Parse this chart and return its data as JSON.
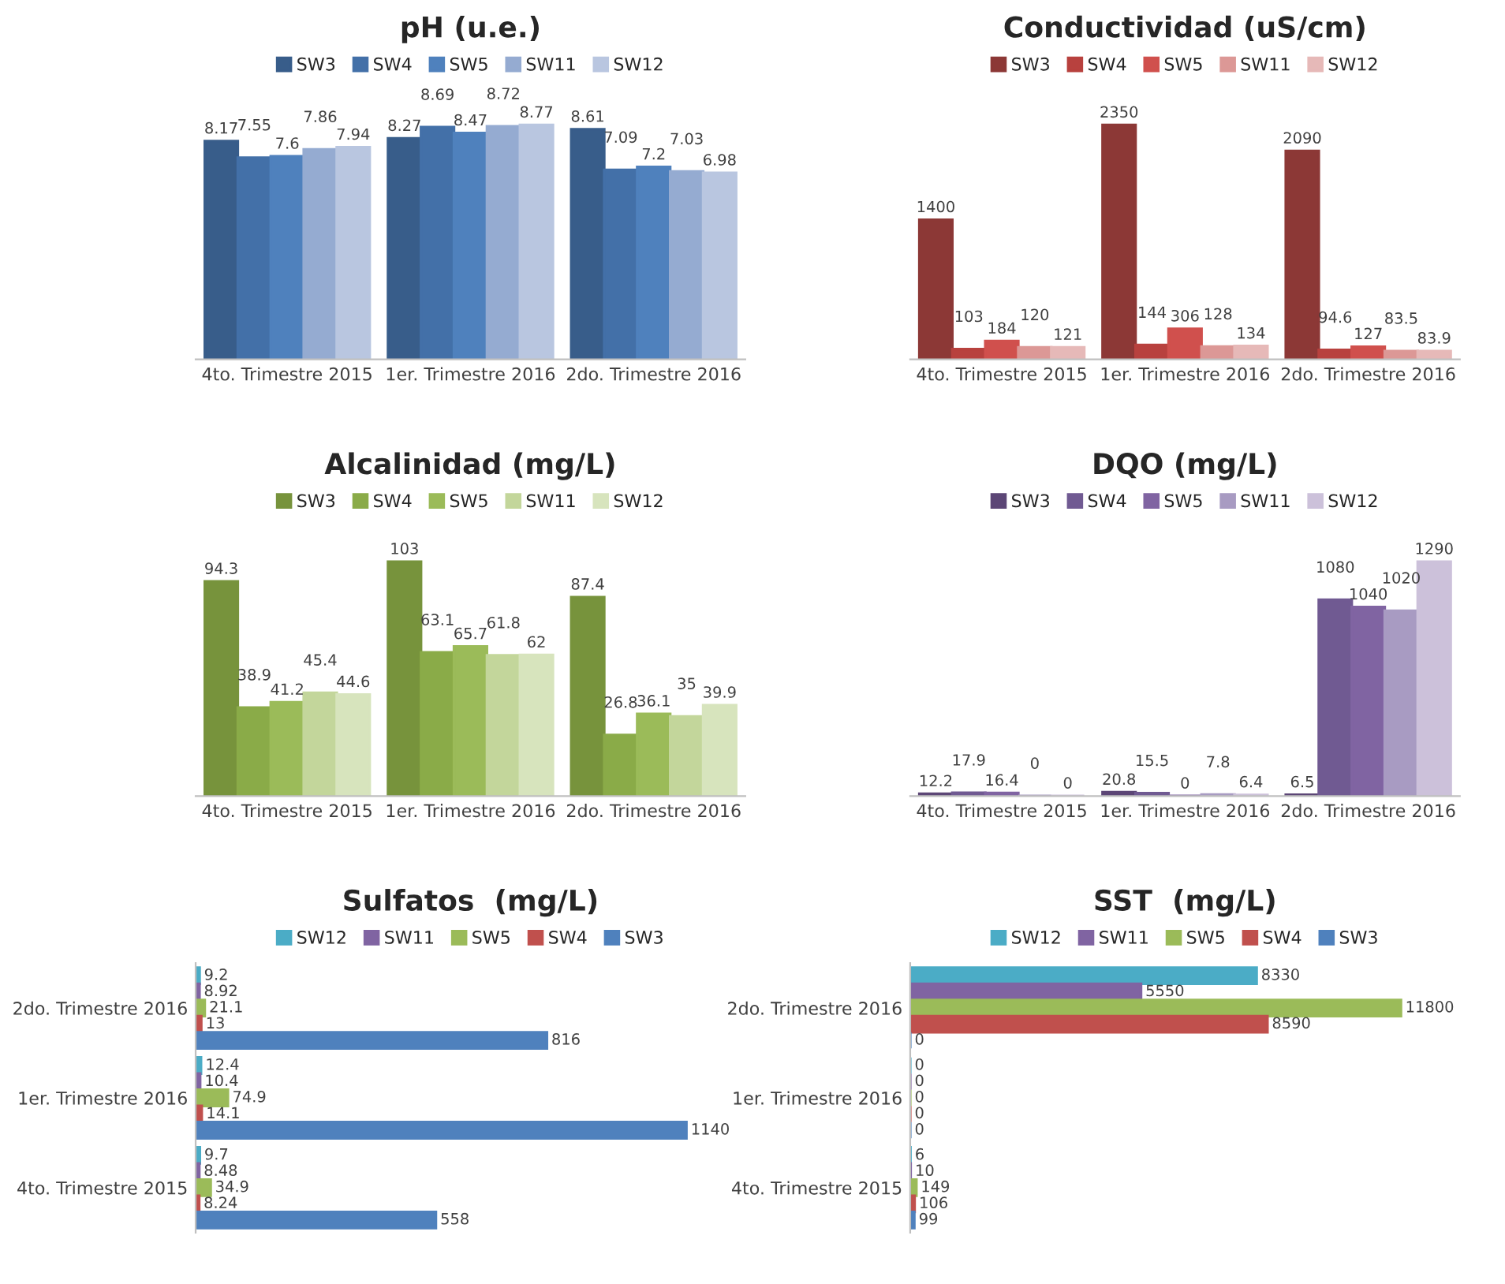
{
  "chart_data": [
    {
      "type": "bar",
      "title": "pH (u.e.)",
      "categories": [
        "4to. Trimestre 2015",
        "1er. Trimestre 2016",
        "2do. Trimestre 2016"
      ],
      "data_labels": true,
      "legend": "top",
      "tick_labels": "x",
      "series": [
        {
          "name": "SW3",
          "color": "#385d8a",
          "values": [
            8.17,
            8.27,
            8.61
          ]
        },
        {
          "name": "SW4",
          "color": "#4370a8",
          "values": [
            7.55,
            8.69,
            7.09
          ]
        },
        {
          "name": "SW5",
          "color": "#4f81bd",
          "values": [
            7.6,
            8.47,
            7.2
          ]
        },
        {
          "name": "SW11",
          "color": "#95abd1",
          "values": [
            7.86,
            8.72,
            7.03
          ]
        },
        {
          "name": "SW12",
          "color": "#b9c6e0",
          "values": [
            7.94,
            8.77,
            6.98
          ]
        }
      ]
    },
    {
      "type": "bar",
      "title": "Conductividad (uS/cm)",
      "categories": [
        "4to. Trimestre 2015",
        "1er. Trimestre 2016",
        "2do. Trimestre 2016"
      ],
      "data_labels": true,
      "legend": "top",
      "tick_labels": "x",
      "series": [
        {
          "name": "SW3",
          "color": "#8c3836",
          "values": [
            1400,
            2350,
            2090
          ]
        },
        {
          "name": "SW4",
          "color": "#b8413e",
          "values": [
            103,
            144,
            94.6
          ]
        },
        {
          "name": "SW5",
          "color": "#d0504d",
          "values": [
            184,
            306,
            127
          ]
        },
        {
          "name": "SW11",
          "color": "#dc9896",
          "values": [
            120,
            128,
            83.5
          ]
        },
        {
          "name": "SW12",
          "color": "#e6b9b8",
          "values": [
            121,
            134,
            83.9
          ]
        }
      ]
    },
    {
      "type": "bar",
      "title": "Alcalinidad (mg/L)",
      "categories": [
        "4to. Trimestre 2015",
        "1er. Trimestre 2016",
        "2do. Trimestre 2016"
      ],
      "data_labels": true,
      "legend": "top",
      "tick_labels": "x",
      "series": [
        {
          "name": "SW3",
          "color": "#77933c",
          "values": [
            94.3,
            103,
            87.4
          ]
        },
        {
          "name": "SW4",
          "color": "#8aab48",
          "values": [
            38.9,
            63.1,
            26.8
          ]
        },
        {
          "name": "SW5",
          "color": "#9bbb59",
          "values": [
            41.2,
            65.7,
            36.1
          ]
        },
        {
          "name": "SW11",
          "color": "#c3d69b",
          "values": [
            45.4,
            61.8,
            35
          ]
        },
        {
          "name": "SW12",
          "color": "#d7e4bd",
          "values": [
            44.6,
            62,
            39.9
          ]
        }
      ]
    },
    {
      "type": "bar",
      "title": "DQO (mg/L)",
      "categories": [
        "4to. Trimestre 2015",
        "1er. Trimestre 2016",
        "2do. Trimestre 2016"
      ],
      "data_labels": true,
      "legend": "top",
      "tick_labels": "x",
      "series": [
        {
          "name": "SW3",
          "color": "#5c4676",
          "values": [
            12.2,
            20.8,
            6.5
          ]
        },
        {
          "name": "SW4",
          "color": "#705a92",
          "values": [
            17.9,
            15.5,
            1080
          ]
        },
        {
          "name": "SW5",
          "color": "#8064a2",
          "values": [
            16.4,
            0,
            1040
          ]
        },
        {
          "name": "SW11",
          "color": "#a89bc2",
          "values": [
            0,
            7.8,
            1020
          ]
        },
        {
          "name": "SW12",
          "color": "#ccc1da",
          "values": [
            0,
            6.4,
            1290
          ]
        }
      ]
    },
    {
      "type": "bar",
      "orientation": "horizontal",
      "title": "Sulfatos  (mg/L)",
      "categories": [
        "2do. Trimestre 2016",
        "1er. Trimestre 2016",
        "4to. Trimestre 2015"
      ],
      "data_labels": true,
      "legend": "top",
      "tick_labels": "y",
      "series": [
        {
          "name": "SW12",
          "color": "#4bacc6",
          "values": [
            9.2,
            12.4,
            9.7
          ]
        },
        {
          "name": "SW11",
          "color": "#8064a2",
          "values": [
            8.92,
            10.4,
            8.48
          ]
        },
        {
          "name": "SW5",
          "color": "#9bbb59",
          "values": [
            21.1,
            74.9,
            34.9
          ]
        },
        {
          "name": "SW4",
          "color": "#c0504d",
          "values": [
            13,
            14.1,
            8.24
          ]
        },
        {
          "name": "SW3",
          "color": "#4f81bd",
          "values": [
            816,
            1140,
            558
          ]
        }
      ]
    },
    {
      "type": "bar",
      "orientation": "horizontal",
      "title": "SST  (mg/L)",
      "categories": [
        "2do. Trimestre 2016",
        "1er. Trimestre 2016",
        "4to. Trimestre 2015"
      ],
      "data_labels": true,
      "legend": "top",
      "tick_labels": "y",
      "series": [
        {
          "name": "SW12",
          "color": "#4bacc6",
          "values": [
            8330,
            0,
            6
          ]
        },
        {
          "name": "SW11",
          "color": "#8064a2",
          "values": [
            5550,
            0,
            10
          ]
        },
        {
          "name": "SW5",
          "color": "#9bbb59",
          "values": [
            11800,
            0,
            149
          ]
        },
        {
          "name": "SW4",
          "color": "#c0504d",
          "values": [
            8590,
            0,
            106
          ]
        },
        {
          "name": "SW3",
          "color": "#4f81bd",
          "values": [
            0,
            0,
            99
          ]
        }
      ]
    }
  ]
}
